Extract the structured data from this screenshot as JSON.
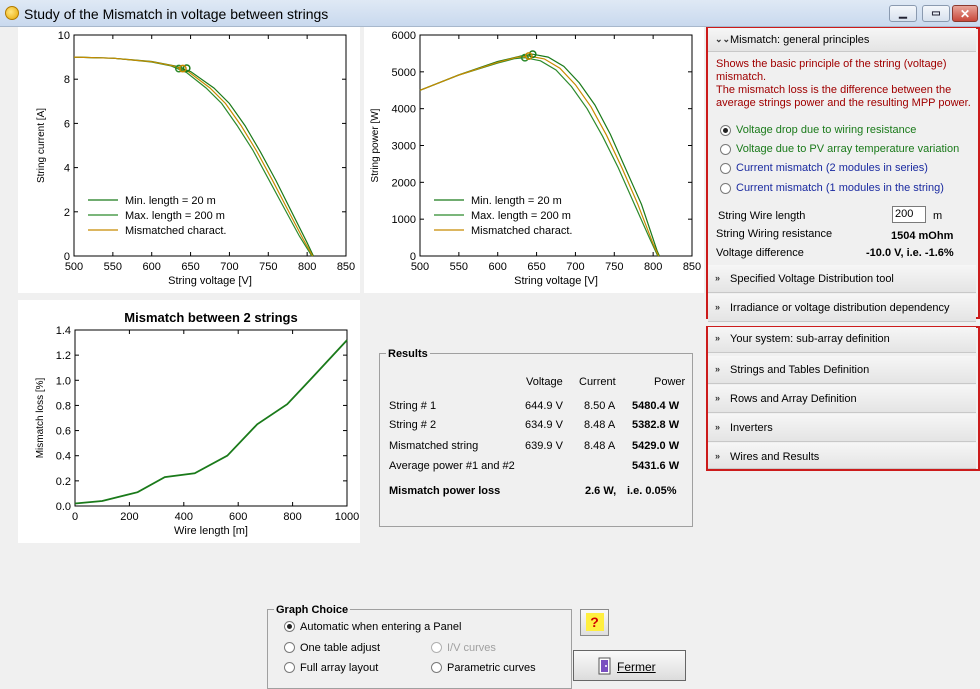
{
  "window": {
    "title": "Study of the Mismatch in voltage between strings",
    "min_label": "▁",
    "max_label": "▭",
    "close_label": "✕"
  },
  "chart_current": {
    "title": "",
    "xlabel": "String voltage [V]",
    "ylabel": "String current [A]",
    "xticks": [
      "500",
      "550",
      "600",
      "650",
      "700",
      "750",
      "800",
      "850"
    ],
    "yticks": [
      "0",
      "2",
      "4",
      "6",
      "8",
      "10"
    ],
    "legend": [
      "Min. length = 20 m",
      "Max. length = 200 m",
      "Mismatched charact."
    ]
  },
  "chart_power": {
    "title": "",
    "xlabel": "String voltage [V]",
    "ylabel": "String power [W]",
    "xticks": [
      "500",
      "550",
      "600",
      "650",
      "700",
      "750",
      "800",
      "850"
    ],
    "yticks": [
      "0",
      "1000",
      "2000",
      "3000",
      "4000",
      "5000",
      "6000"
    ],
    "legend": [
      "Min. length = 20 m",
      "Max. length = 200 m",
      "Mismatched charact."
    ]
  },
  "chart_mismatch": {
    "title": "Mismatch between 2 strings",
    "xlabel": "Wire length [m]",
    "ylabel": "Mismatch loss [%]",
    "xticks": [
      "0",
      "200",
      "400",
      "600",
      "800",
      "1000"
    ],
    "yticks": [
      "0.0",
      "0.2",
      "0.4",
      "0.6",
      "0.8",
      "1.0",
      "1.2",
      "1.4"
    ]
  },
  "chart_data": [
    {
      "type": "line",
      "xlabel": "String voltage [V]",
      "ylabel": "String current [A]",
      "xlim": [
        500,
        850
      ],
      "ylim": [
        0,
        10
      ],
      "series": [
        {
          "name": "Min. length = 20 m",
          "x": [
            500,
            550,
            600,
            630,
            650,
            680,
            700,
            720,
            740,
            760,
            780,
            800,
            808
          ],
          "y": [
            9.0,
            8.95,
            8.8,
            8.6,
            8.35,
            7.6,
            6.9,
            5.9,
            4.7,
            3.4,
            2.0,
            0.6,
            0
          ]
        },
        {
          "name": "Max. length = 200 m",
          "x": [
            500,
            550,
            600,
            625,
            645,
            670,
            690,
            710,
            730,
            750,
            770,
            790,
            806
          ],
          "y": [
            9.0,
            8.95,
            8.78,
            8.6,
            8.3,
            7.6,
            6.9,
            5.9,
            4.8,
            3.5,
            2.2,
            0.9,
            0
          ]
        },
        {
          "name": "Mismatched charact.",
          "x": [
            500,
            550,
            600,
            628,
            648,
            675,
            695,
            715,
            735,
            755,
            775,
            795,
            807
          ],
          "y": [
            9.0,
            8.95,
            8.79,
            8.6,
            8.32,
            7.6,
            6.9,
            5.9,
            4.75,
            3.45,
            2.1,
            0.75,
            0
          ]
        }
      ]
    },
    {
      "type": "line",
      "xlabel": "String voltage [V]",
      "ylabel": "String power [W]",
      "xlim": [
        500,
        850
      ],
      "ylim": [
        0,
        6000
      ],
      "series": [
        {
          "name": "Min. length = 20 m",
          "x": [
            500,
            550,
            600,
            630,
            645,
            665,
            685,
            705,
            725,
            745,
            765,
            785,
            805,
            808
          ],
          "y": [
            4500,
            4920,
            5280,
            5430,
            5480,
            5400,
            5150,
            4700,
            4100,
            3300,
            2350,
            1400,
            150,
            0
          ]
        },
        {
          "name": "Max. length = 200 m",
          "x": [
            500,
            550,
            600,
            622,
            635,
            655,
            675,
            695,
            715,
            735,
            755,
            775,
            795,
            806
          ],
          "y": [
            4500,
            4910,
            5240,
            5360,
            5383,
            5300,
            5050,
            4600,
            4000,
            3250,
            2400,
            1450,
            500,
            0
          ]
        },
        {
          "name": "Mismatched charact.",
          "x": [
            500,
            550,
            600,
            626,
            640,
            660,
            680,
            700,
            720,
            740,
            760,
            780,
            800,
            807
          ],
          "y": [
            4500,
            4915,
            5260,
            5400,
            5429,
            5350,
            5100,
            4650,
            4050,
            3280,
            2380,
            1420,
            330,
            0
          ]
        }
      ]
    },
    {
      "type": "line",
      "title": "Mismatch between 2 strings",
      "xlabel": "Wire length [m]",
      "ylabel": "Mismatch loss [%]",
      "xlim": [
        0,
        1000
      ],
      "ylim": [
        0,
        1.4
      ],
      "series": [
        {
          "name": "",
          "x": [
            0,
            100,
            230,
            330,
            440,
            560,
            670,
            780,
            880,
            1000
          ],
          "y": [
            0.02,
            0.04,
            0.11,
            0.23,
            0.26,
            0.4,
            0.65,
            0.81,
            1.04,
            1.32
          ]
        }
      ]
    }
  ],
  "results": {
    "title": "Results",
    "headers": [
      "Voltage",
      "Current",
      "Power"
    ],
    "rows": [
      {
        "label": "String # 1",
        "voltage": "644.9 V",
        "current": "8.50 A",
        "power": "5480.4 W"
      },
      {
        "label": "String # 2",
        "voltage": "634.9 V",
        "current": "8.48 A",
        "power": "5382.8 W"
      },
      {
        "label": "Mismatched string",
        "voltage": "639.9 V",
        "current": "8.48 A",
        "power": "5429.0 W"
      }
    ],
    "average_label": "Average power #1 and #2",
    "average_value": "5431.6 W",
    "loss_label": "Mismatch power loss",
    "loss_value": "2.6 W,",
    "loss_pct": "i.e. 0.05%"
  },
  "graph_choice": {
    "title": "Graph Choice",
    "options": [
      "Automatic when entering a Panel",
      "One table adjust",
      "Full array layout",
      "I/V curves",
      "Parametric curves"
    ],
    "selected": "Automatic when entering a Panel"
  },
  "help_label": "?",
  "fermer_label": "Fermer",
  "side": {
    "principles_header": "Mismatch:  general principles",
    "description_lines": [
      "Shows the basic principle of the string (voltage)",
      "mismatch.",
      "The mismatch loss is the difference between the",
      "average strings  power and the resulting MPP power."
    ],
    "options": [
      "Voltage drop due to wiring resistance",
      "Voltage due to PV array temperature variation",
      "Current mismatch  (2 modules in series)",
      "Current mismatch  (1 modules in the string)"
    ],
    "option_colors": [
      "#1a7a1a",
      "#1a7a1a",
      "#1a2aa0",
      "#1a2aa0"
    ],
    "selected_option": "Voltage drop due to wiring resistance",
    "wire_length_label": "String Wire length",
    "wire_length_value": "200",
    "wire_length_unit": "m",
    "resistance_label": "String Wiring resistance",
    "resistance_value": "1504 mOhm",
    "voltage_diff_label": "Voltage difference",
    "voltage_diff_value": "-10.0 V,   i.e. -1.6%",
    "sections": [
      "Specified Voltage Distribution tool",
      "Irradiance or voltage distribution dependency",
      "Your system: sub-array definition",
      "Strings and Tables Definition",
      "Rows and Array Definition",
      "Inverters",
      "Wires and Results"
    ]
  },
  "colors": {
    "curve_min": "#1a7a1a",
    "curve_max": "#2c8a2c",
    "curve_mismatch": "#c88a00",
    "loss_curve": "#1a7a1a",
    "frame_red": "#cc1b1b",
    "desc_red": "#a00000"
  }
}
